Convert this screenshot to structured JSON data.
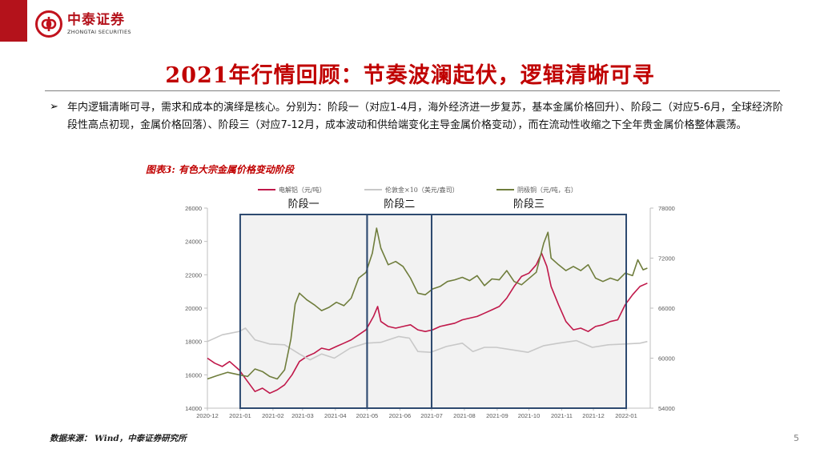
{
  "header": {
    "logo_cn": "中泰证券",
    "logo_en": "ZHONGTAI SECURITIES",
    "accent_color": "#b4121b"
  },
  "slide": {
    "title": "2021年行情回顾：节奏波澜起伏，逻辑清晰可寻",
    "bullet_symbol": "➢",
    "paragraph": "年内逻辑清晰可寻，需求和成本的演绎是核心。分别为：阶段一（对应1-4月，海外经济进一步复苏，基本金属价格回升）、阶段二（对应5-6月，全球经济阶段性高点初现，金属价格回落）、阶段三（对应7-12月，成本波动和供给端变化主导金属价格变动），而在流动性收缩之下全年贵金属价格整体震荡。",
    "figure_title": "图表3: 有色大宗金属价格变动阶段",
    "source": "数据来源： Wind，中泰证券研究所",
    "page_number": "5"
  },
  "chart_data": {
    "type": "line",
    "x_ticks": [
      "2020-12",
      "2021-01",
      "2021-02",
      "2021-03",
      "2021-04",
      "2021-05",
      "2021-06",
      "2021-07",
      "2021-08",
      "2021-09",
      "2021-10",
      "2021-11",
      "2021-12",
      "2022-01"
    ],
    "ylim_left": [
      14000,
      26000
    ],
    "yticks_left": [
      14000,
      16000,
      18000,
      20000,
      22000,
      24000,
      26000
    ],
    "ylim_right": [
      54000,
      78000
    ],
    "yticks_right": [
      54000,
      60000,
      66000,
      72000,
      78000
    ],
    "grid": false,
    "legend_position": "top",
    "stages": [
      {
        "label": "阶段一",
        "from": "2021-01",
        "to": "2021-05"
      },
      {
        "label": "阶段二",
        "from": "2021-05",
        "to": "2021-07"
      },
      {
        "label": "阶段三",
        "from": "2021-07",
        "to": "2022-01"
      }
    ],
    "series": [
      {
        "name": "电解铝（元/吨）",
        "axis": "left",
        "color": "#c0184a",
        "points": [
          [
            "2020-12-01",
            17000
          ],
          [
            "2020-12-08",
            16700
          ],
          [
            "2020-12-15",
            16500
          ],
          [
            "2020-12-22",
            16800
          ],
          [
            "2020-12-31",
            16300
          ],
          [
            "2021-01-08",
            15600
          ],
          [
            "2021-01-15",
            15000
          ],
          [
            "2021-01-22",
            15200
          ],
          [
            "2021-01-29",
            14900
          ],
          [
            "2021-02-05",
            15100
          ],
          [
            "2021-02-12",
            15400
          ],
          [
            "2021-02-19",
            16000
          ],
          [
            "2021-02-26",
            16800
          ],
          [
            "2021-03-05",
            17100
          ],
          [
            "2021-03-12",
            17300
          ],
          [
            "2021-03-19",
            17600
          ],
          [
            "2021-03-26",
            17500
          ],
          [
            "2021-04-02",
            17700
          ],
          [
            "2021-04-09",
            17900
          ],
          [
            "2021-04-16",
            18100
          ],
          [
            "2021-04-23",
            18400
          ],
          [
            "2021-04-30",
            18700
          ],
          [
            "2021-05-07",
            19500
          ],
          [
            "2021-05-11",
            20100
          ],
          [
            "2021-05-14",
            19200
          ],
          [
            "2021-05-21",
            18900
          ],
          [
            "2021-05-28",
            18800
          ],
          [
            "2021-06-04",
            18900
          ],
          [
            "2021-06-11",
            19000
          ],
          [
            "2021-06-18",
            18700
          ],
          [
            "2021-06-25",
            18600
          ],
          [
            "2021-07-02",
            18700
          ],
          [
            "2021-07-09",
            18900
          ],
          [
            "2021-07-16",
            19000
          ],
          [
            "2021-07-23",
            19100
          ],
          [
            "2021-07-30",
            19300
          ],
          [
            "2021-08-06",
            19400
          ],
          [
            "2021-08-13",
            19500
          ],
          [
            "2021-08-20",
            19700
          ],
          [
            "2021-08-27",
            19900
          ],
          [
            "2021-09-03",
            20100
          ],
          [
            "2021-09-10",
            20600
          ],
          [
            "2021-09-17",
            21300
          ],
          [
            "2021-09-24",
            21900
          ],
          [
            "2021-10-01",
            22100
          ],
          [
            "2021-10-08",
            22600
          ],
          [
            "2021-10-13",
            23300
          ],
          [
            "2021-10-18",
            22500
          ],
          [
            "2021-10-22",
            21300
          ],
          [
            "2021-10-29",
            20200
          ],
          [
            "2021-11-05",
            19200
          ],
          [
            "2021-11-12",
            18700
          ],
          [
            "2021-11-19",
            18800
          ],
          [
            "2021-11-26",
            18600
          ],
          [
            "2021-12-03",
            18900
          ],
          [
            "2021-12-10",
            19000
          ],
          [
            "2021-12-17",
            19200
          ],
          [
            "2021-12-24",
            19300
          ],
          [
            "2021-12-31",
            20200
          ],
          [
            "2022-01-07",
            20800
          ],
          [
            "2022-01-14",
            21300
          ],
          [
            "2022-01-21",
            21500
          ]
        ]
      },
      {
        "name": "伦敦金×10（美元/盎司）",
        "axis": "right",
        "color": "#c8c8c8",
        "points": [
          [
            "2020-12-01",
            62000
          ],
          [
            "2020-12-15",
            62800
          ],
          [
            "2020-12-31",
            63200
          ],
          [
            "2021-01-06",
            63600
          ],
          [
            "2021-01-15",
            62200
          ],
          [
            "2021-01-29",
            61700
          ],
          [
            "2021-02-12",
            61600
          ],
          [
            "2021-02-26",
            60500
          ],
          [
            "2021-03-08",
            59800
          ],
          [
            "2021-03-19",
            60500
          ],
          [
            "2021-03-31",
            60000
          ],
          [
            "2021-04-15",
            61200
          ],
          [
            "2021-04-30",
            61800
          ],
          [
            "2021-05-14",
            61900
          ],
          [
            "2021-05-31",
            62600
          ],
          [
            "2021-06-10",
            62400
          ],
          [
            "2021-06-18",
            60800
          ],
          [
            "2021-06-30",
            60700
          ],
          [
            "2021-07-15",
            61400
          ],
          [
            "2021-07-30",
            61800
          ],
          [
            "2021-08-09",
            60800
          ],
          [
            "2021-08-20",
            61300
          ],
          [
            "2021-08-31",
            61300
          ],
          [
            "2021-09-15",
            61000
          ],
          [
            "2021-09-30",
            60700
          ],
          [
            "2021-10-15",
            61500
          ],
          [
            "2021-10-29",
            61800
          ],
          [
            "2021-11-15",
            62100
          ],
          [
            "2021-11-30",
            61300
          ],
          [
            "2021-12-15",
            61600
          ],
          [
            "2021-12-31",
            61700
          ],
          [
            "2022-01-14",
            61800
          ],
          [
            "2022-01-21",
            62000
          ]
        ]
      },
      {
        "name": "阴极铜（元/吨，右）",
        "axis": "right",
        "color": "#6f7d3c",
        "points": [
          [
            "2020-12-01",
            57500
          ],
          [
            "2020-12-10",
            57900
          ],
          [
            "2020-12-20",
            58300
          ],
          [
            "2020-12-31",
            58000
          ],
          [
            "2021-01-08",
            57800
          ],
          [
            "2021-01-15",
            58700
          ],
          [
            "2021-01-22",
            58400
          ],
          [
            "2021-01-29",
            57800
          ],
          [
            "2021-02-05",
            57500
          ],
          [
            "2021-02-12",
            58600
          ],
          [
            "2021-02-18",
            62300
          ],
          [
            "2021-02-22",
            66500
          ],
          [
            "2021-02-26",
            67800
          ],
          [
            "2021-03-05",
            67000
          ],
          [
            "2021-03-12",
            66400
          ],
          [
            "2021-03-19",
            65700
          ],
          [
            "2021-03-26",
            66100
          ],
          [
            "2021-04-02",
            66700
          ],
          [
            "2021-04-09",
            66300
          ],
          [
            "2021-04-16",
            67200
          ],
          [
            "2021-04-23",
            69600
          ],
          [
            "2021-04-30",
            70300
          ],
          [
            "2021-05-06",
            72600
          ],
          [
            "2021-05-10",
            75600
          ],
          [
            "2021-05-14",
            73200
          ],
          [
            "2021-05-21",
            71200
          ],
          [
            "2021-05-28",
            71600
          ],
          [
            "2021-06-04",
            71000
          ],
          [
            "2021-06-11",
            69600
          ],
          [
            "2021-06-18",
            67800
          ],
          [
            "2021-06-25",
            67600
          ],
          [
            "2021-07-02",
            68300
          ],
          [
            "2021-07-09",
            68600
          ],
          [
            "2021-07-16",
            69200
          ],
          [
            "2021-07-23",
            69400
          ],
          [
            "2021-07-30",
            69700
          ],
          [
            "2021-08-06",
            69300
          ],
          [
            "2021-08-13",
            69900
          ],
          [
            "2021-08-20",
            68700
          ],
          [
            "2021-08-27",
            69500
          ],
          [
            "2021-09-03",
            69400
          ],
          [
            "2021-09-10",
            70500
          ],
          [
            "2021-09-17",
            69200
          ],
          [
            "2021-09-24",
            68800
          ],
          [
            "2021-10-08",
            70300
          ],
          [
            "2021-10-15",
            73800
          ],
          [
            "2021-10-19",
            75100
          ],
          [
            "2021-10-22",
            72000
          ],
          [
            "2021-10-29",
            71200
          ],
          [
            "2021-11-05",
            70500
          ],
          [
            "2021-11-12",
            71000
          ],
          [
            "2021-11-19",
            70500
          ],
          [
            "2021-11-26",
            71200
          ],
          [
            "2021-12-03",
            69600
          ],
          [
            "2021-12-10",
            69200
          ],
          [
            "2021-12-17",
            69600
          ],
          [
            "2021-12-24",
            69300
          ],
          [
            "2021-12-31",
            70200
          ],
          [
            "2022-01-07",
            69900
          ],
          [
            "2022-01-12",
            71800
          ],
          [
            "2022-01-17",
            70600
          ],
          [
            "2022-01-21",
            70800
          ]
        ]
      }
    ]
  }
}
